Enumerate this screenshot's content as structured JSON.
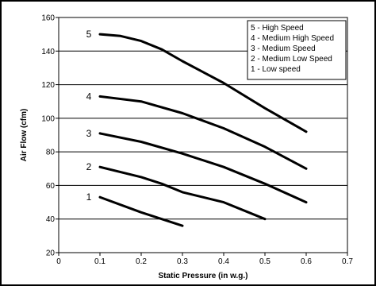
{
  "chart_data": {
    "type": "line",
    "title": "",
    "xlabel": "Static Pressure (in w.g.)",
    "ylabel": "Air Flow (cfm)",
    "xlim": [
      0,
      0.7
    ],
    "ylim": [
      20,
      160
    ],
    "x_ticks": [
      "0",
      "0.1",
      "0.2",
      "0.3",
      "0.4",
      "0.5",
      "0.6",
      "0.7"
    ],
    "y_ticks": [
      "20",
      "40",
      "60",
      "80",
      "100",
      "120",
      "140",
      "160"
    ],
    "grid": "horizontal",
    "legend_position": "top-right",
    "legend": [
      "5 - High Speed",
      "4 - Medium High Speed",
      "3 - Medium Speed",
      "2 - Medium Low Speed",
      "1 - Low speed"
    ],
    "series": [
      {
        "name": "5",
        "x": [
          0.1,
          0.15,
          0.2,
          0.25,
          0.3,
          0.4,
          0.5,
          0.6
        ],
        "values": [
          150,
          149,
          146,
          141,
          134,
          121,
          106,
          92
        ]
      },
      {
        "name": "4",
        "x": [
          0.1,
          0.2,
          0.3,
          0.4,
          0.5,
          0.6
        ],
        "values": [
          113,
          110,
          103,
          94,
          83,
          70
        ]
      },
      {
        "name": "3",
        "x": [
          0.1,
          0.2,
          0.3,
          0.4,
          0.5,
          0.6
        ],
        "values": [
          91,
          86,
          79,
          71,
          61,
          50
        ]
      },
      {
        "name": "2",
        "x": [
          0.1,
          0.2,
          0.25,
          0.3,
          0.4,
          0.5
        ],
        "values": [
          71,
          65,
          61,
          56,
          50,
          40
        ]
      },
      {
        "name": "1",
        "x": [
          0.1,
          0.2,
          0.3
        ],
        "values": [
          53,
          44,
          36
        ]
      }
    ]
  }
}
